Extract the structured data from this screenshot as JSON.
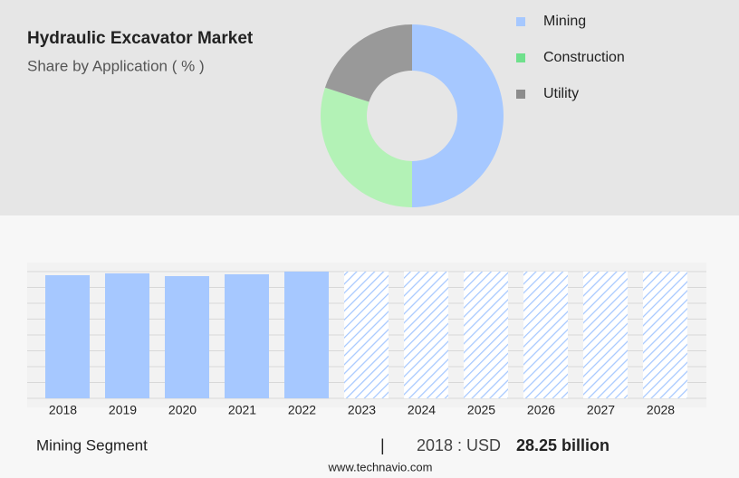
{
  "chart_data": [
    {
      "type": "donut",
      "title": "Hydraulic Excavator Market",
      "subtitle": "Share by Application ( % )",
      "series": [
        {
          "name": "Mining",
          "color": "#a6c8ff",
          "values": [
            50
          ]
        },
        {
          "name": "Construction",
          "color": "#b3f2b6",
          "values": [
            30
          ]
        },
        {
          "name": "Utility",
          "color": "#999999",
          "values": [
            20
          ]
        }
      ],
      "legend_colors": [
        "#a6c8ff",
        "#6fe08c",
        "#8c8c8c"
      ]
    },
    {
      "type": "bar",
      "categories": [
        "2018",
        "2019",
        "2020",
        "2021",
        "2022",
        "2023",
        "2024",
        "2025",
        "2026",
        "2027",
        "2028"
      ],
      "values": [
        28.25,
        28.67,
        28.04,
        28.46,
        29.08,
        29.08,
        29.08,
        29.08,
        29.08,
        29.08,
        29.08
      ],
      "hatched": [
        false,
        false,
        false,
        false,
        false,
        true,
        true,
        true,
        true,
        true,
        true
      ],
      "color": "#a6c8ff",
      "ylim": [
        0,
        29.08
      ]
    }
  ],
  "footer": {
    "segment": "Mining Segment",
    "separator": "|",
    "year_label": "2018 : USD",
    "value_label": "28.25 billion",
    "source": "www.technavio.com"
  }
}
